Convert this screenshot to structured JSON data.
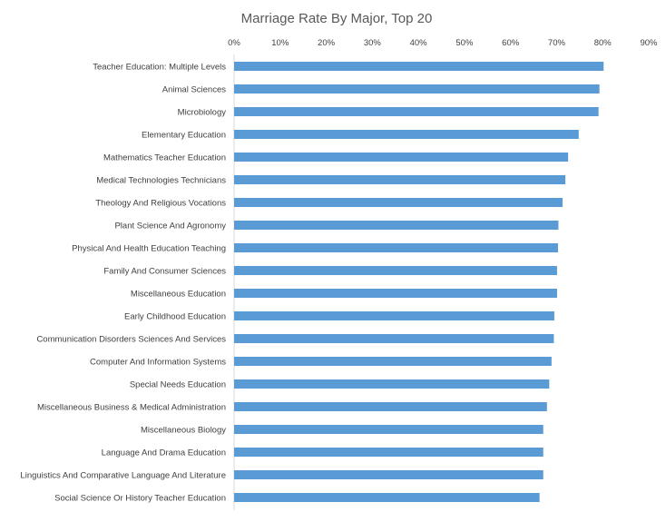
{
  "chart_data": {
    "type": "bar",
    "orientation": "horizontal",
    "title": "Marriage Rate By Major, Top 20",
    "xlabel": "",
    "ylabel": "",
    "xlim": [
      0,
      90
    ],
    "x_ticks": [
      "0%",
      "10%",
      "20%",
      "30%",
      "40%",
      "50%",
      "60%",
      "70%",
      "80%",
      "90%"
    ],
    "x_axis_position": "top",
    "grid": false,
    "legend": "none",
    "bar_color": "#5b9bd5",
    "categories": [
      "Teacher Education: Multiple Levels",
      "Animal Sciences",
      "Microbiology",
      "Elementary Education",
      "Mathematics Teacher Education",
      "Medical Technologies Technicians",
      "Theology And Religious Vocations",
      "Plant Science And Agronomy",
      "Physical And Health Education Teaching",
      "Family And Consumer Sciences",
      "Miscellaneous Education",
      "Early Childhood Education",
      "Communication Disorders Sciences And Services",
      "Computer And Information Systems",
      "Special Needs Education",
      "Miscellaneous Business & Medical Administration",
      "Miscellaneous Biology",
      "Language And Drama Education",
      "Linguistics And Comparative Language And Literature",
      "Social Science Or History Teacher Education"
    ],
    "values": [
      80.2,
      79.3,
      79.1,
      74.8,
      72.5,
      71.9,
      71.3,
      70.4,
      70.3,
      70.1,
      70.1,
      69.5,
      69.4,
      68.9,
      68.4,
      67.9,
      67.1,
      67.1,
      67.1,
      66.3
    ]
  }
}
